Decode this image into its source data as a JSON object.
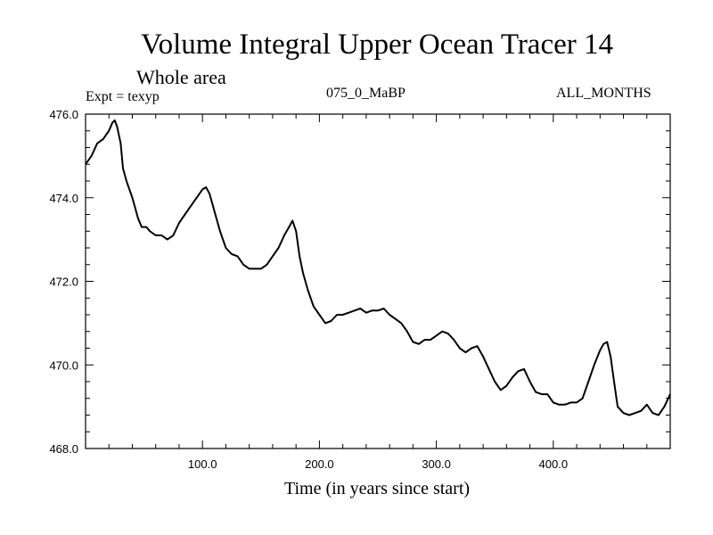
{
  "header": {
    "title": "Volume Integral Upper Ocean Tracer 14",
    "subtitle": "Whole area",
    "expt": "Expt = texyp",
    "experiment_id": "075_0_MaBP",
    "months": "ALL_MONTHS"
  },
  "chart_data": {
    "type": "line",
    "title": "Volume Integral Upper Ocean Tracer 14",
    "subtitle": "Whole area",
    "xlabel": "Time (in years since start)",
    "ylabel": "",
    "xlim": [
      0,
      500
    ],
    "ylim": [
      468.0,
      476.0
    ],
    "x_ticks": [
      100,
      200,
      300,
      400
    ],
    "x_tick_labels": [
      "100.0",
      "200.0",
      "300.0",
      "400.0"
    ],
    "y_ticks": [
      468,
      470,
      472,
      474,
      476
    ],
    "y_tick_labels": [
      "468.0",
      "470.0",
      "472.0",
      "474.0",
      "476.0"
    ],
    "grid": false,
    "legend": "none",
    "line_color": "#000000",
    "series": [
      {
        "x": [
          0,
          5,
          10,
          15,
          20,
          23,
          25,
          27,
          30,
          32,
          35,
          40,
          45,
          48,
          52,
          55,
          60,
          65,
          70,
          75,
          80,
          85,
          90,
          95,
          100,
          103,
          106,
          110,
          115,
          120,
          125,
          130,
          135,
          140,
          145,
          150,
          155,
          160,
          165,
          170,
          174,
          177,
          180,
          183,
          186,
          190,
          195,
          200,
          205,
          210,
          215,
          220,
          225,
          230,
          235,
          240,
          245,
          250,
          255,
          260,
          265,
          270,
          275,
          280,
          285,
          290,
          295,
          300,
          305,
          310,
          315,
          320,
          325,
          330,
          335,
          340,
          345,
          350,
          355,
          360,
          365,
          370,
          375,
          380,
          385,
          390,
          395,
          400,
          405,
          410,
          415,
          420,
          425,
          430,
          435,
          440,
          443,
          446,
          449,
          452,
          455,
          460,
          465,
          470,
          475,
          480,
          485,
          490,
          495,
          500
        ],
        "y": [
          474.8,
          475.0,
          475.3,
          475.4,
          475.6,
          475.8,
          475.85,
          475.7,
          475.3,
          474.7,
          474.4,
          474.0,
          473.5,
          473.3,
          473.3,
          473.2,
          473.1,
          473.1,
          473.0,
          473.1,
          473.4,
          473.6,
          473.8,
          474.0,
          474.2,
          474.25,
          474.1,
          473.7,
          473.2,
          472.8,
          472.65,
          472.6,
          472.4,
          472.3,
          472.3,
          472.3,
          472.4,
          472.6,
          472.8,
          473.1,
          473.3,
          473.45,
          473.2,
          472.6,
          472.2,
          471.8,
          471.4,
          471.2,
          471.0,
          471.05,
          471.2,
          471.2,
          471.25,
          471.3,
          471.35,
          471.25,
          471.3,
          471.3,
          471.35,
          471.2,
          471.1,
          471.0,
          470.8,
          470.55,
          470.5,
          470.6,
          470.6,
          470.7,
          470.8,
          470.75,
          470.6,
          470.4,
          470.3,
          470.4,
          470.45,
          470.2,
          469.9,
          469.6,
          469.4,
          469.5,
          469.7,
          469.85,
          469.9,
          469.6,
          469.35,
          469.3,
          469.3,
          469.1,
          469.05,
          469.05,
          469.1,
          469.1,
          469.2,
          469.6,
          470.0,
          470.35,
          470.5,
          470.55,
          470.2,
          469.6,
          469.0,
          468.85,
          468.8,
          468.85,
          468.9,
          469.05,
          468.85,
          468.8,
          469.0,
          469.3
        ]
      }
    ]
  }
}
